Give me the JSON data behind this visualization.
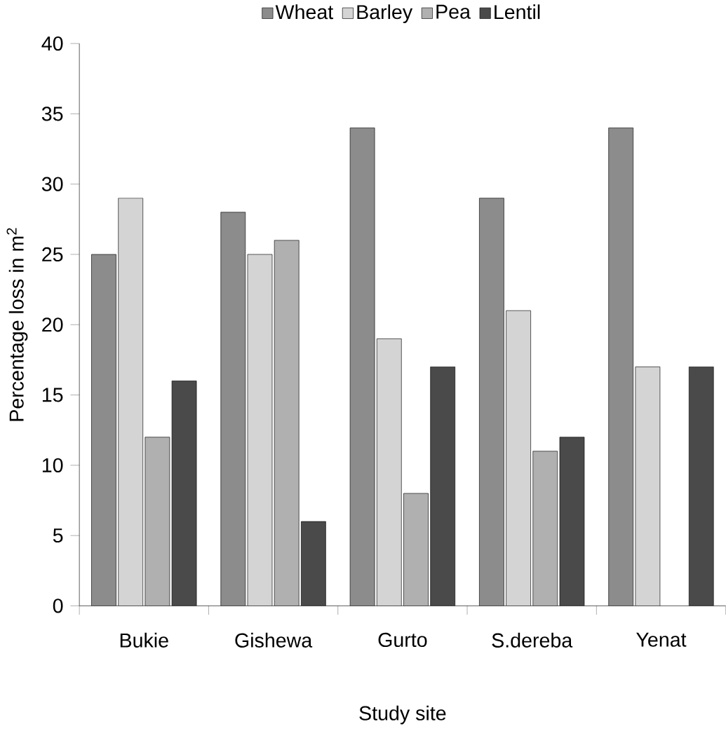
{
  "chart_data": {
    "type": "bar",
    "xlabel": "Study site",
    "ylabel": "Percentage loss in m$^{2}$",
    "categories": [
      "Bukie",
      "Gishewa",
      "Gurto",
      "S.dereba",
      "Yenat"
    ],
    "series": [
      {
        "name": "Wheat",
        "color": "#8c8c8c",
        "values": [
          25,
          28,
          34,
          29,
          34
        ]
      },
      {
        "name": "Barley",
        "color": "#d4d4d4",
        "values": [
          29,
          25,
          19,
          21,
          17
        ]
      },
      {
        "name": "Pea",
        "color": "#b0b0b0",
        "values": [
          12,
          26,
          8,
          11,
          null
        ]
      },
      {
        "name": "Lentil",
        "color": "#4a4a4a",
        "values": [
          16,
          6,
          17,
          12,
          17
        ]
      }
    ],
    "ylim": [
      0,
      40
    ],
    "yticks": [
      0,
      5,
      10,
      15,
      20,
      25,
      30,
      35,
      40
    ],
    "grid": false,
    "legend": "top"
  }
}
